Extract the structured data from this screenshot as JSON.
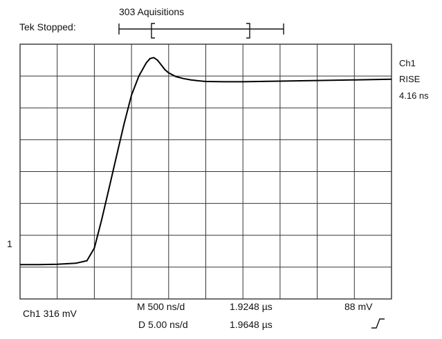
{
  "header": {
    "status_text": "Tek Stopped:",
    "acquisitions": "303 Aquisitions"
  },
  "side_readout": {
    "channel": "Ch1",
    "measurement": "RISE",
    "value": "4.16 ns"
  },
  "ground_marker": "1",
  "footer": {
    "channel_scale": "Ch1  316 mV",
    "main_timebase": "M 500 ns/d",
    "main_position": "1.9248 µs",
    "delayed_timebase": "D 5.00 ns/d",
    "delayed_position": "1.9648 µs",
    "trigger_level": "88 mV"
  },
  "colors": {
    "grid": "#333333",
    "trace": "#000000",
    "text": "#111111"
  },
  "chart_data": {
    "type": "line",
    "title": "",
    "xlabel": "",
    "ylabel": "",
    "grid": true,
    "divisions": {
      "x": 10,
      "y": 8
    },
    "xlim": [
      0,
      10
    ],
    "ylim": [
      0,
      8
    ],
    "series": [
      {
        "x": [
          0,
          0.5,
          1,
          1.5,
          1.8,
          2.0,
          2.2,
          2.4,
          2.6,
          2.8,
          3.0,
          3.2,
          3.4,
          3.5,
          3.6,
          3.7,
          3.8,
          3.9,
          4.0,
          4.2,
          4.4,
          4.6,
          4.8,
          5.0,
          5.5,
          6.0,
          7.0,
          8.0,
          9.0,
          10.0
        ],
        "y": [
          1.08,
          1.08,
          1.09,
          1.12,
          1.2,
          1.6,
          2.5,
          3.5,
          4.5,
          5.5,
          6.4,
          7.0,
          7.42,
          7.55,
          7.58,
          7.5,
          7.35,
          7.2,
          7.1,
          6.98,
          6.92,
          6.88,
          6.85,
          6.83,
          6.82,
          6.82,
          6.84,
          6.86,
          6.88,
          6.9
        ]
      }
    ]
  }
}
